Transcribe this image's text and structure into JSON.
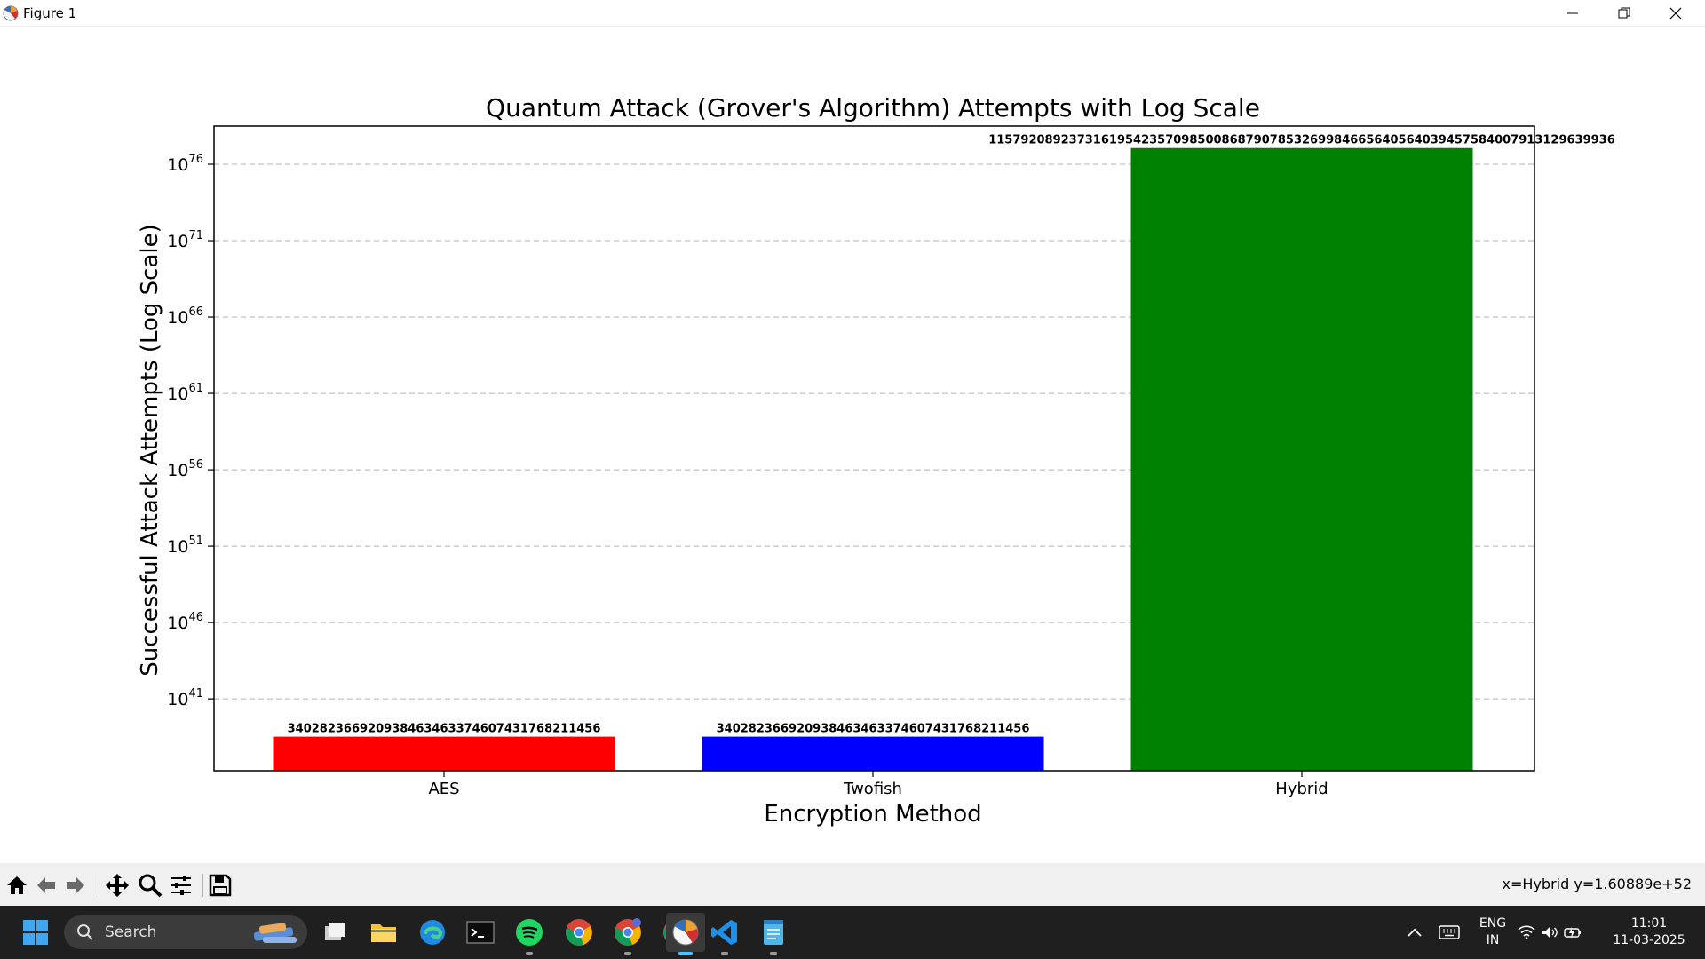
{
  "window": {
    "title": "Figure 1"
  },
  "chart_data": {
    "type": "bar",
    "title": "Quantum Attack (Grover's Algorithm) Attempts with Log Scale",
    "xlabel": "Encryption Method",
    "ylabel": "Successful Attack Attempts (Log Scale)",
    "yscale": "log",
    "ylim_exponents": [
      36.3,
      78.5
    ],
    "categories": [
      "AES",
      "Twofish",
      "Hybrid"
    ],
    "values": [
      3.402823669209385e+38,
      3.402823669209385e+38,
      1.157920892373162e+77
    ],
    "colors": [
      "#ff0000",
      "#0000ff",
      "#008000"
    ],
    "data_labels": [
      "340282366920938463463374607431768211456",
      "340282366920938463463374607431768211456",
      "115792089237316195423570985008687907853269984665640564039457584007913129639936"
    ],
    "y_ticks": [
      {
        "base": "10",
        "exp": "41"
      },
      {
        "base": "10",
        "exp": "46"
      },
      {
        "base": "10",
        "exp": "51"
      },
      {
        "base": "10",
        "exp": "56"
      },
      {
        "base": "10",
        "exp": "61"
      },
      {
        "base": "10",
        "exp": "66"
      },
      {
        "base": "10",
        "exp": "71"
      },
      {
        "base": "10",
        "exp": "76"
      }
    ],
    "grid": "y-dashed"
  },
  "toolbar": {
    "coords": "x=Hybrid y=1.60889e+52"
  },
  "taskbar": {
    "search_label": "Search",
    "lang_top": "ENG",
    "lang_bottom": "IN",
    "time": "11:01",
    "date": "11-03-2025"
  }
}
